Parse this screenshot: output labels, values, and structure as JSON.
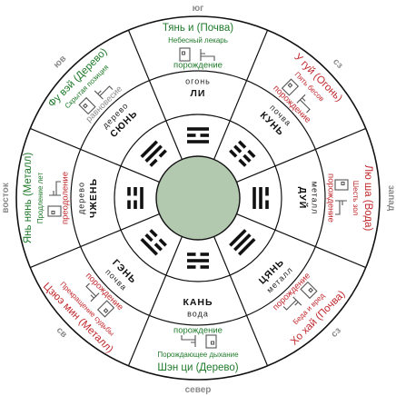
{
  "colors": {
    "green": "#1f7a2a",
    "red": "#c0282d",
    "gray": "#8a8a8a",
    "hub": "#b2c9b0",
    "stroke": "#111111"
  },
  "compass": {
    "n": "север",
    "s": "юг",
    "e": "запад",
    "w": "восток",
    "ne": "сз",
    "nw": "юв",
    "se": "св",
    "sw": "сз"
  },
  "sectors": [
    {
      "id": "south",
      "title": "Тянь и (Почва)",
      "title_color": "green",
      "subtitle": "Небесный лекарь",
      "subtitle_color": "green",
      "relation": "порождение",
      "relation_color": "green",
      "element": "огонь",
      "trigram": "ЛИ"
    },
    {
      "id": "southwest",
      "title": "У гуй (Огонь)",
      "title_color": "red",
      "subtitle": "Пять бесов",
      "subtitle_color": "red",
      "relation": "порождение",
      "relation_color": "red",
      "element": "почва",
      "trigram": "КУНЬ"
    },
    {
      "id": "west",
      "title": "Лю ша (Вода)",
      "title_color": "red",
      "subtitle": "Шесть зол",
      "subtitle_color": "red",
      "relation": "порождение",
      "relation_color": "red",
      "element": "металл",
      "trigram": "ДУЙ"
    },
    {
      "id": "northwest",
      "title": "Хо хай (Почва)",
      "title_color": "red",
      "subtitle": "Беда и вред",
      "subtitle_color": "red",
      "relation": "порождение",
      "relation_color": "red",
      "element": "металл",
      "trigram": "ЦЯНЬ"
    },
    {
      "id": "north",
      "title": "Шэн ци (Дерево)",
      "title_color": "green",
      "subtitle": "Порождающее дыхание",
      "subtitle_color": "green",
      "relation": "порождение",
      "relation_color": "green",
      "element": "вода",
      "trigram": "КАНЬ"
    },
    {
      "id": "northeast",
      "title": "Цзюэ мин (Металл)",
      "title_color": "red",
      "subtitle": "Прекращение судьбы",
      "subtitle_color": "red",
      "relation": "порождение",
      "relation_color": "red",
      "element": "почва",
      "trigram": "ГЭНЬ"
    },
    {
      "id": "east",
      "title": "Янь нянь (Металл)",
      "title_color": "green",
      "subtitle": "Продление лет",
      "subtitle_color": "green",
      "relation": "преодоление",
      "relation_color": "red",
      "element": "дерево",
      "trigram": "ЧЖЕНЬ"
    },
    {
      "id": "southeast",
      "title": "Фу вэй (Дерево)",
      "title_color": "green",
      "subtitle": "Скрытая позиция",
      "subtitle_color": "green",
      "relation": "равновесие",
      "relation_color": "gray",
      "element": "дерево",
      "trigram": "СЮНЬ"
    }
  ]
}
